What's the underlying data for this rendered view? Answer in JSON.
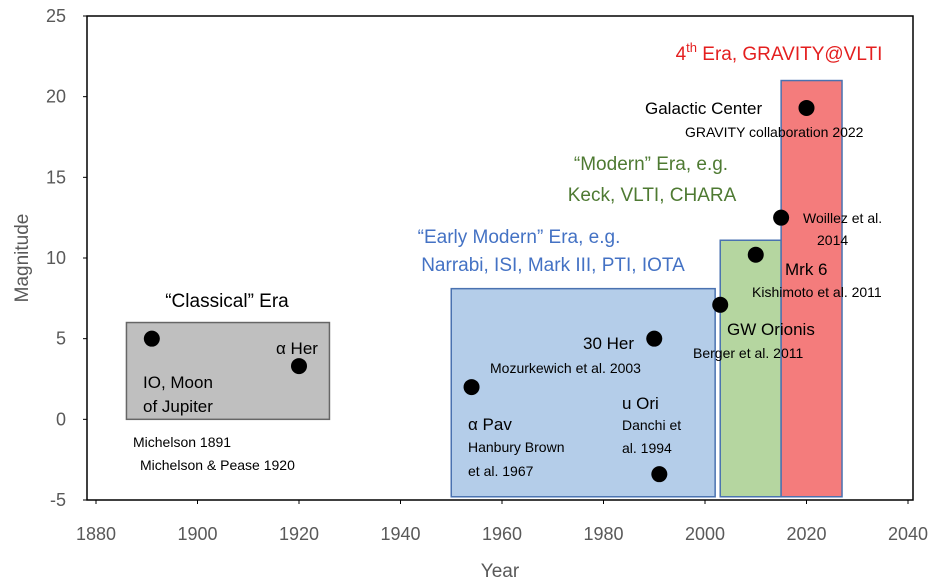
{
  "chart_data": {
    "type": "scatter",
    "xlabel": "Year",
    "ylabel": "Magnitude",
    "xlim": [
      1880,
      2040
    ],
    "ylim": [
      -5,
      25
    ],
    "xticks": [
      1880,
      1900,
      1920,
      1940,
      1960,
      1980,
      2000,
      2020,
      2040
    ],
    "yticks": [
      -5,
      0,
      5,
      10,
      15,
      20,
      25
    ],
    "x": [
      1891,
      1920,
      1954,
      1990,
      1991,
      2003,
      2010,
      2015,
      2020
    ],
    "values": [
      5,
      3.3,
      2,
      5,
      -3.4,
      7.1,
      10.2,
      12.5,
      19.3
    ],
    "color": "#000000",
    "eras": [
      {
        "label": [
          "“Classical” Era"
        ],
        "xlim": [
          1886,
          1926
        ],
        "ylim": [
          0,
          6
        ],
        "color": "#bfbfbf",
        "text_color": "#000000"
      },
      {
        "label": [
          "“Early Modern” Era, e.g.",
          "Narrabi, ISI, Mark III, PTI, IOTA"
        ],
        "xlim": [
          1950,
          2002
        ],
        "ylim": [
          -4.8,
          8.1
        ],
        "color": "#b4cde9",
        "text_color": "#4472c4"
      },
      {
        "label": [
          "“Modern” Era, e.g.",
          "Keck, VLTI, CHARA"
        ],
        "xlim": [
          2003,
          2015
        ],
        "ylim": [
          -4.8,
          11.1
        ],
        "color": "#b5d6a0",
        "text_color": "#4e7a32"
      },
      {
        "label": [
          "4",
          "th",
          " Era, GRAVITY@VLTI"
        ],
        "xlim": [
          2015,
          2027
        ],
        "ylim": [
          -4.8,
          21
        ],
        "color": "#f47c7c",
        "text_color": "#e41f1f"
      }
    ],
    "annotations": [
      "IO, Moon",
      "of Jupiter",
      "α Her",
      "Michelson 1891",
      "Michelson & Pease 1920",
      "α  Pav",
      "Hanbury Brown",
      "et al. 1967",
      "30 Her",
      "Mozurkewich et al. 2003",
      "u Ori",
      "Danchi et",
      "al. 1994",
      "GW Orionis",
      "Berger et al. 2011",
      "Mrk 6",
      "Kishimoto et al. 2011",
      "Woillez et al.",
      "2014",
      "Galactic Center",
      "GRAVITY collaboration 2022"
    ]
  }
}
